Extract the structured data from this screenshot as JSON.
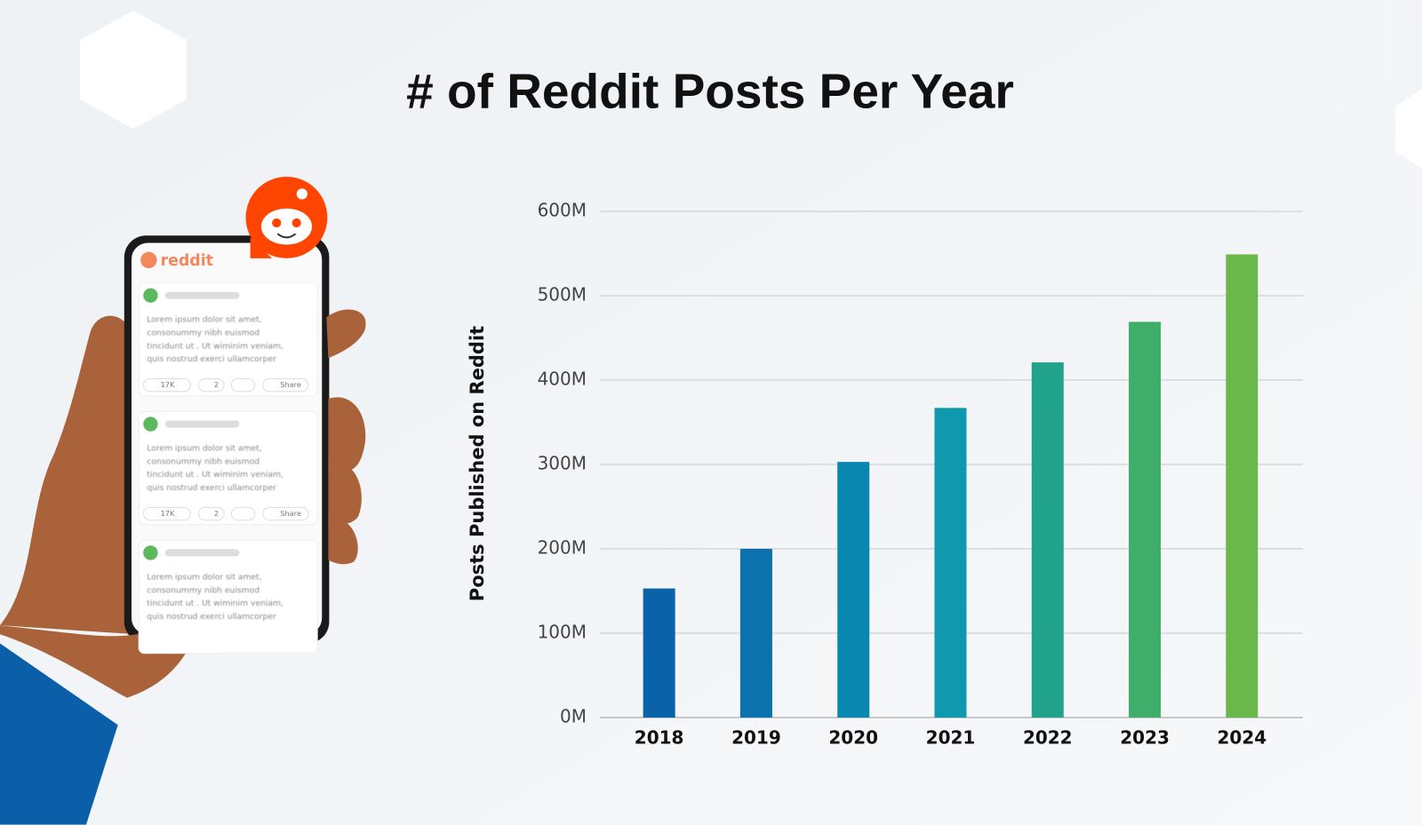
{
  "chart_data": {
    "type": "bar",
    "title": "# of Reddit Posts Per Year",
    "y_label": "Posts Published on Reddit",
    "categories": [
      "2018",
      "2019",
      "2020",
      "2021",
      "2022",
      "2023",
      "2024"
    ],
    "values": [
      153000000,
      200000000,
      303000000,
      367000000,
      421000000,
      469000000,
      549000000
    ],
    "colors": [
      "#0a62a8",
      "#0c72ad",
      "#0a87b0",
      "#0f98ae",
      "#21a38b",
      "#3fae6a",
      "#6bb84a"
    ],
    "ylim": [
      0,
      600000000
    ],
    "yticks": [
      {
        "value": 0,
        "label": "0M"
      },
      {
        "value": 100000000,
        "label": "100M"
      },
      {
        "value": 200000000,
        "label": "200M"
      },
      {
        "value": 300000000,
        "label": "300M"
      },
      {
        "value": 400000000,
        "label": "400M"
      },
      {
        "value": 500000000,
        "label": "500M"
      },
      {
        "value": 600000000,
        "label": "600M"
      }
    ],
    "grid": true
  },
  "illustration": {
    "logo": "reddit",
    "posts": [
      {
        "text": [
          "Lorem ipsum dolor sit amet,",
          "consonummy nibh euismod",
          "tincidunt ut . Ut wiminim veniam,",
          "quis nostrud exerci ullamcorper"
        ],
        "upvotes": "17K",
        "comments": "2",
        "share": "Share"
      },
      {
        "text": [
          "Lorem ipsum dolor sit amet,",
          "consonummy nibh euismod",
          "tincidunt ut . Ut wiminim veniam,",
          "quis nostrud exerci ullamcorper"
        ],
        "upvotes": "17K",
        "comments": "2",
        "share": "Share"
      },
      {
        "text": [
          "Lorem ipsum dolor sit amet,",
          "consonummy nibh euismod",
          "tincidunt ut . Ut wiminim veniam,",
          "quis nostrud exerci ullamcorper"
        ]
      }
    ]
  }
}
